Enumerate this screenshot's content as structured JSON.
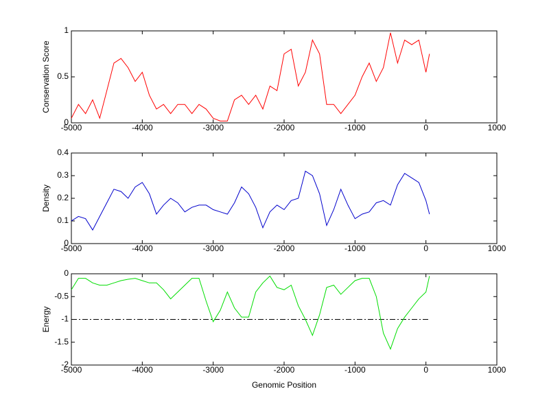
{
  "chart_data": [
    {
      "type": "line",
      "ylabel": "Conservation Score",
      "color": "#ff0000",
      "x": [
        -5000,
        -4900,
        -4800,
        -4700,
        -4600,
        -4500,
        -4400,
        -4300,
        -4200,
        -4100,
        -4000,
        -3900,
        -3800,
        -3700,
        -3600,
        -3500,
        -3400,
        -3300,
        -3200,
        -3100,
        -3000,
        -2900,
        -2800,
        -2700,
        -2600,
        -2500,
        -2400,
        -2300,
        -2200,
        -2100,
        -2000,
        -1900,
        -1800,
        -1700,
        -1600,
        -1500,
        -1400,
        -1300,
        -1200,
        -1100,
        -1000,
        -900,
        -800,
        -700,
        -600,
        -500,
        -400,
        -300,
        -200,
        -100,
        0,
        50
      ],
      "values": [
        0.05,
        0.2,
        0.1,
        0.25,
        0.05,
        0.35,
        0.65,
        0.7,
        0.6,
        0.45,
        0.55,
        0.3,
        0.15,
        0.2,
        0.1,
        0.2,
        0.2,
        0.1,
        0.2,
        0.15,
        0.05,
        0.02,
        0.02,
        0.25,
        0.3,
        0.2,
        0.3,
        0.15,
        0.4,
        0.35,
        0.75,
        0.8,
        0.4,
        0.55,
        0.9,
        0.75,
        0.2,
        0.2,
        0.1,
        0.2,
        0.3,
        0.5,
        0.65,
        0.45,
        0.6,
        0.98,
        0.65,
        0.9,
        0.85,
        0.9,
        0.55,
        0.75
      ],
      "xlim": [
        -5000,
        1000
      ],
      "xticks": [
        -5000,
        -4000,
        -3000,
        -2000,
        -1000,
        0,
        1000
      ],
      "ylim": [
        0,
        1
      ],
      "yticks": [
        0,
        0.5,
        1
      ]
    },
    {
      "type": "line",
      "ylabel": "Density",
      "color": "#0000cc",
      "x": [
        -5000,
        -4900,
        -4800,
        -4700,
        -4600,
        -4500,
        -4400,
        -4300,
        -4200,
        -4100,
        -4000,
        -3900,
        -3800,
        -3700,
        -3600,
        -3500,
        -3400,
        -3300,
        -3200,
        -3100,
        -3000,
        -2900,
        -2800,
        -2700,
        -2600,
        -2500,
        -2400,
        -2300,
        -2200,
        -2100,
        -2000,
        -1900,
        -1800,
        -1700,
        -1600,
        -1500,
        -1400,
        -1300,
        -1200,
        -1100,
        -1000,
        -900,
        -800,
        -700,
        -600,
        -500,
        -400,
        -300,
        -200,
        -100,
        0,
        50
      ],
      "values": [
        0.1,
        0.12,
        0.11,
        0.06,
        0.12,
        0.18,
        0.24,
        0.23,
        0.2,
        0.25,
        0.27,
        0.22,
        0.13,
        0.17,
        0.2,
        0.18,
        0.14,
        0.16,
        0.17,
        0.17,
        0.15,
        0.14,
        0.13,
        0.18,
        0.25,
        0.22,
        0.16,
        0.07,
        0.14,
        0.17,
        0.15,
        0.19,
        0.2,
        0.32,
        0.3,
        0.22,
        0.08,
        0.15,
        0.24,
        0.17,
        0.11,
        0.13,
        0.14,
        0.18,
        0.19,
        0.17,
        0.26,
        0.31,
        0.29,
        0.27,
        0.19,
        0.13
      ],
      "xlim": [
        -5000,
        1000
      ],
      "xticks": [
        -5000,
        -4000,
        -3000,
        -2000,
        -1000,
        0,
        1000
      ],
      "ylim": [
        0,
        0.4
      ],
      "yticks": [
        0,
        0.1,
        0.2,
        0.3,
        0.4
      ]
    },
    {
      "type": "line",
      "ylabel": "Energy",
      "xlabel": "Genomic Position",
      "color": "#00dd00",
      "x": [
        -5000,
        -4900,
        -4800,
        -4700,
        -4600,
        -4500,
        -4400,
        -4300,
        -4200,
        -4100,
        -4000,
        -3900,
        -3800,
        -3700,
        -3600,
        -3500,
        -3400,
        -3300,
        -3200,
        -3100,
        -3000,
        -2900,
        -2800,
        -2700,
        -2600,
        -2500,
        -2400,
        -2300,
        -2200,
        -2100,
        -2000,
        -1900,
        -1800,
        -1700,
        -1600,
        -1500,
        -1400,
        -1300,
        -1200,
        -1100,
        -1000,
        -900,
        -800,
        -700,
        -600,
        -500,
        -400,
        -300,
        -200,
        -100,
        0,
        50
      ],
      "values": [
        -0.35,
        -0.1,
        -0.1,
        -0.2,
        -0.25,
        -0.25,
        -0.2,
        -0.15,
        -0.12,
        -0.1,
        -0.15,
        -0.2,
        -0.2,
        -0.35,
        -0.55,
        -0.4,
        -0.25,
        -0.1,
        -0.1,
        -0.6,
        -1.05,
        -0.8,
        -0.4,
        -0.75,
        -0.95,
        -0.95,
        -0.4,
        -0.2,
        -0.05,
        -0.3,
        -0.35,
        -0.25,
        -0.7,
        -1.0,
        -1.35,
        -0.9,
        -0.3,
        -0.25,
        -0.45,
        -0.3,
        -0.15,
        -0.1,
        -0.1,
        -0.5,
        -1.3,
        -1.65,
        -1.2,
        -0.95,
        -0.75,
        -0.55,
        -0.4,
        -0.05
      ],
      "hline": -1,
      "xlim": [
        -5000,
        1000
      ],
      "xticks": [
        -5000,
        -4000,
        -3000,
        -2000,
        -1000,
        0,
        1000
      ],
      "ylim": [
        -2,
        0
      ],
      "yticks": [
        -2,
        -1.5,
        -1,
        -0.5,
        0
      ]
    }
  ]
}
